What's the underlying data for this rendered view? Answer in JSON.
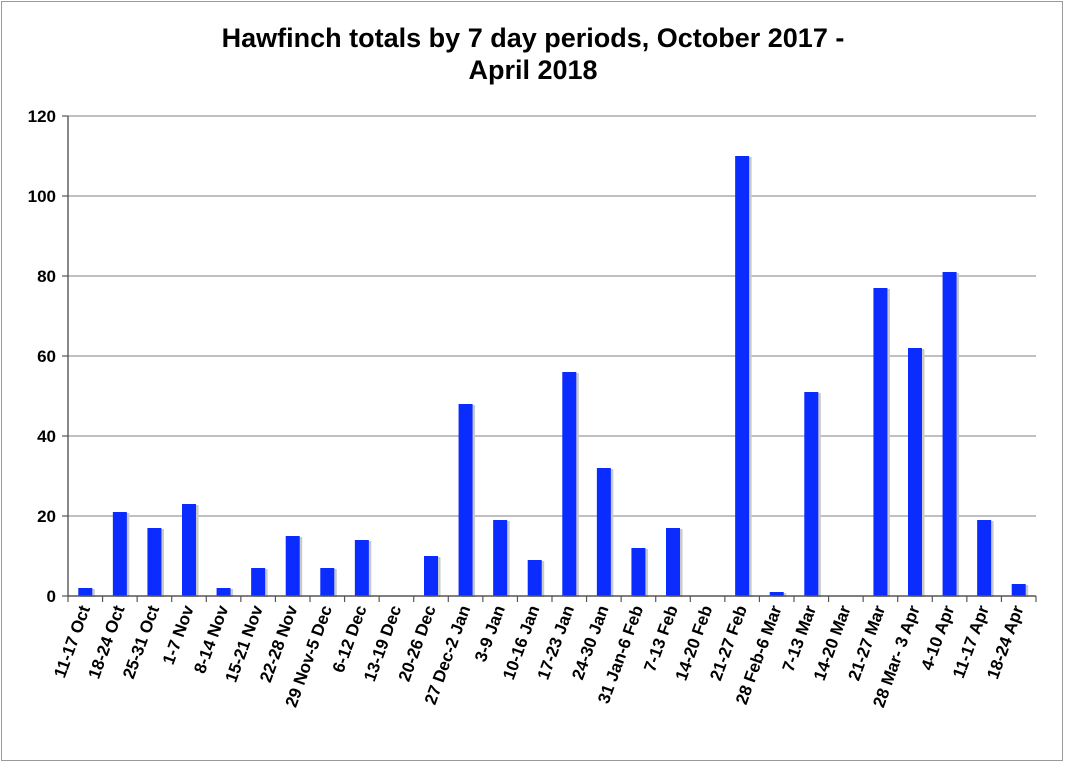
{
  "chart_data": {
    "type": "bar",
    "title_line1": "Hawfinch totals by 7 day periods, October 2017 -",
    "title_line2": "April 2018",
    "xlabel": "",
    "ylabel": "",
    "ylim": [
      0,
      120
    ],
    "yticks": [
      0,
      20,
      40,
      60,
      80,
      100,
      120
    ],
    "grid": true,
    "bar_color": "#0b2cff",
    "categories": [
      "11-17 Oct",
      "18-24 Oct",
      "25-31 Oct",
      "1-7 Nov",
      "8-14 Nov",
      "15-21 Nov",
      "22-28 Nov",
      "29 Nov-5 Dec",
      "6-12 Dec",
      "13-19 Dec",
      "20-26 Dec",
      "27 Dec-2 Jan",
      "3-9 Jan",
      "10-16 Jan",
      "17-23 Jan",
      "24-30 Jan",
      "31 Jan-6 Feb",
      "7-13 Feb",
      "14-20 Feb",
      "21-27 Feb",
      "28 Feb-6 Mar",
      "7-13 Mar",
      "14-20 Mar",
      "21-27 Mar",
      "28 Mar- 3 Apr",
      "4-10 Apr",
      "11-17 Apr",
      "18-24 Apr"
    ],
    "values": [
      2,
      21,
      17,
      23,
      2,
      7,
      15,
      7,
      14,
      0,
      10,
      48,
      19,
      9,
      56,
      32,
      12,
      17,
      0,
      110,
      1,
      51,
      0,
      77,
      62,
      81,
      19,
      3
    ]
  }
}
